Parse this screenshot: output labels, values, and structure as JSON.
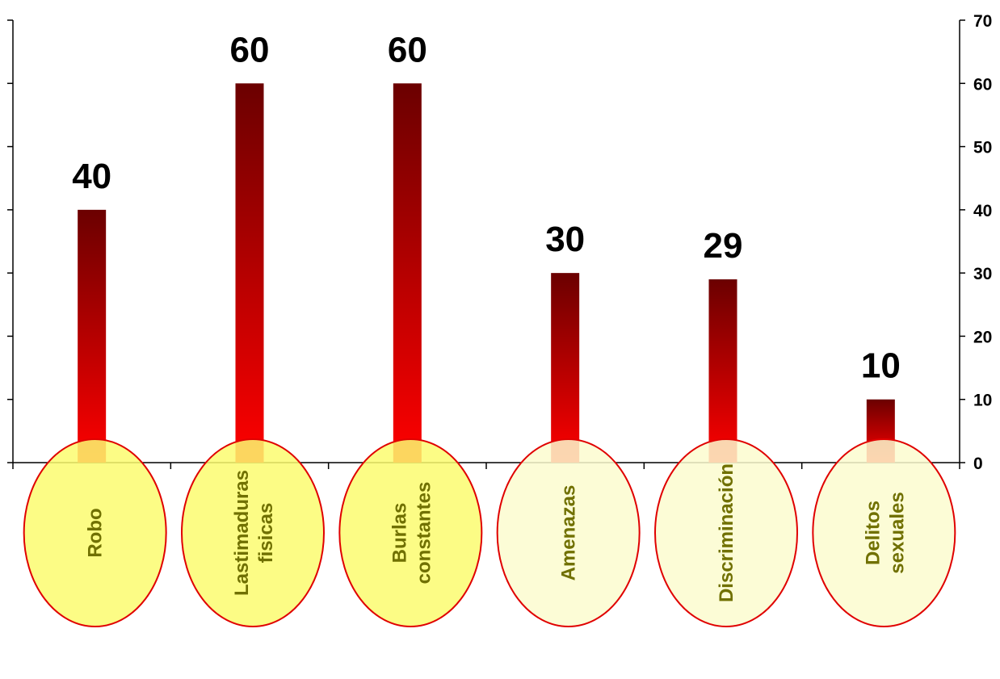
{
  "chart_data": {
    "type": "bar",
    "categories": [
      [
        "Robo"
      ],
      [
        "Lastimaduras",
        "fisicas"
      ],
      [
        "Burlas",
        "constantes"
      ],
      [
        "Amenazas"
      ],
      [
        "Discriminación"
      ],
      [
        "Delitos",
        "sexuales"
      ]
    ],
    "values": [
      40,
      60,
      60,
      30,
      29,
      10
    ],
    "data_labels": [
      "40",
      "60",
      "60",
      "30",
      "29",
      "10"
    ],
    "ylim": [
      0,
      70
    ],
    "yticks": [
      "0",
      "10",
      "20",
      "30",
      "40",
      "50",
      "60",
      "70"
    ],
    "grid": false,
    "legend": false,
    "bar_gradient": {
      "top": "#6b0000",
      "bottom": "#ff0000"
    },
    "ellipse_stroke": "#e00000",
    "ellipse_fills": [
      "#fbfb70",
      "#fbfb70",
      "#fbfb70",
      "#fcfccf",
      "#fcfccf",
      "#fcfccf"
    ],
    "label_color": "#707000"
  }
}
